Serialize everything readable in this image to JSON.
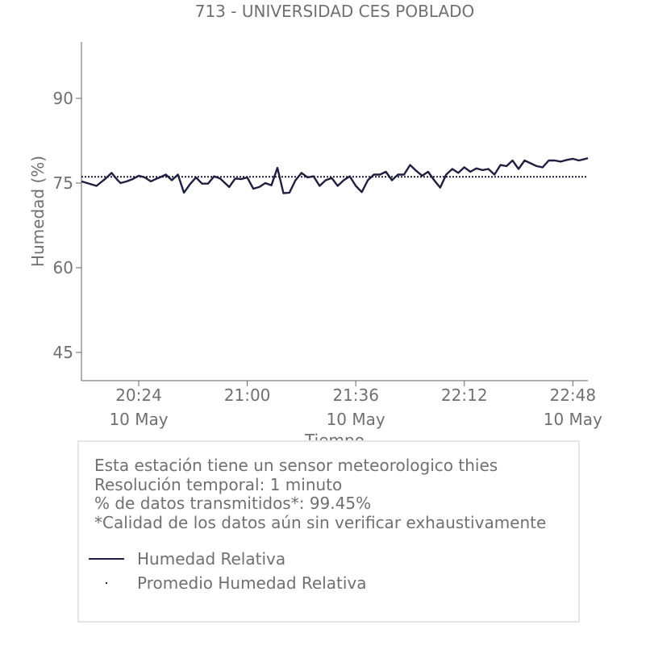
{
  "chart_data": {
    "type": "line",
    "title": "713 - UNIVERSIDAD CES POBLADO",
    "xlabel": "Tiempo",
    "ylabel": "Humedad (%)",
    "ylim": [
      40,
      100
    ],
    "y_ticks": [
      "45",
      "60",
      "75",
      "90"
    ],
    "y_tick_values": [
      45,
      60,
      75,
      90
    ],
    "x_range": [
      "20:05",
      "22:53"
    ],
    "x_ticks": [
      {
        "time": "20:24",
        "label": "20:24",
        "date": "10 May"
      },
      {
        "time": "21:00",
        "label": "21:00",
        "date": ""
      },
      {
        "time": "21:36",
        "label": "21:36",
        "date": "10 May"
      },
      {
        "time": "22:12",
        "label": "22:12",
        "date": ""
      },
      {
        "time": "22:48",
        "label": "22:48",
        "date": "10 May"
      }
    ],
    "grid": false,
    "series": [
      {
        "name": "Humedad Relativa",
        "x": [
          "20:05",
          "20:10",
          "20:13",
          "20:15",
          "20:17",
          "20:18",
          "20:20",
          "20:22",
          "20:24",
          "20:26",
          "20:28",
          "20:30",
          "20:31",
          "20:33",
          "20:35",
          "20:37",
          "20:39",
          "20:41",
          "20:43",
          "20:45",
          "20:47",
          "20:49",
          "20:51",
          "20:54",
          "20:56",
          "20:58",
          "21:00",
          "21:02",
          "21:04",
          "21:06",
          "21:08",
          "21:10",
          "21:12",
          "21:14",
          "21:16",
          "21:18",
          "21:20",
          "21:22",
          "21:24",
          "21:26",
          "21:28",
          "21:30",
          "21:32",
          "21:34",
          "21:36",
          "21:38",
          "21:40",
          "21:42",
          "21:44",
          "21:46",
          "21:48",
          "21:50",
          "21:52",
          "21:54",
          "21:56",
          "21:58",
          "22:00",
          "22:02",
          "22:04",
          "22:06",
          "22:08",
          "22:10",
          "22:12",
          "22:14",
          "22:16",
          "22:18",
          "22:20",
          "22:22",
          "22:24",
          "22:26",
          "22:28",
          "22:30",
          "22:32",
          "22:34",
          "22:36",
          "22:38",
          "22:40",
          "22:42",
          "22:44",
          "22:46",
          "22:48",
          "22:50",
          "22:53"
        ],
        "values": [
          75.3,
          74.5,
          75.8,
          76.8,
          75.5,
          75.0,
          75.3,
          75.7,
          76.3,
          76.0,
          75.3,
          75.8,
          76.0,
          76.5,
          75.5,
          76.5,
          73.3,
          74.8,
          76.0,
          74.9,
          74.9,
          76.2,
          75.8,
          74.3,
          75.8,
          75.7,
          76.0,
          74.0,
          74.3,
          75.0,
          74.6,
          77.7,
          73.2,
          73.3,
          75.5,
          76.8,
          76.0,
          76.2,
          74.5,
          75.5,
          75.9,
          74.5,
          75.5,
          76.2,
          74.5,
          73.4,
          75.5,
          76.5,
          76.5,
          77.0,
          75.5,
          76.5,
          76.5,
          78.2,
          77.2,
          76.3,
          77.0,
          75.5,
          74.2,
          76.5,
          77.5,
          76.8,
          77.8,
          77.0,
          77.6,
          77.3,
          77.5,
          76.5,
          78.2,
          78.0,
          79.0,
          77.5,
          79.0,
          78.5,
          78.0,
          77.8,
          79.0,
          79.0,
          78.8,
          79.1,
          79.3,
          79.0,
          79.4
        ]
      },
      {
        "name": "Promedio Humedad Relativa",
        "x": [
          "20:05",
          "22:53"
        ],
        "values": [
          76.1,
          76.1
        ]
      }
    ],
    "legend_placement": "below-chart"
  },
  "info": {
    "lines": [
      "Esta estación tiene un sensor meteorologico thies",
      "Resolución temporal: 1 minuto",
      "% de datos transmitidos*: 99.45%",
      "*Calidad de los datos aún sin verificar exhaustivamente"
    ]
  },
  "legend": {
    "items": [
      {
        "label": "Humedad Relativa",
        "style": "line"
      },
      {
        "label": "Promedio Humedad Relativa",
        "style": "dotted"
      }
    ]
  },
  "colors": {
    "series": "#1f1f3f",
    "text": "#707070",
    "box_border": "#e6e6e6"
  }
}
